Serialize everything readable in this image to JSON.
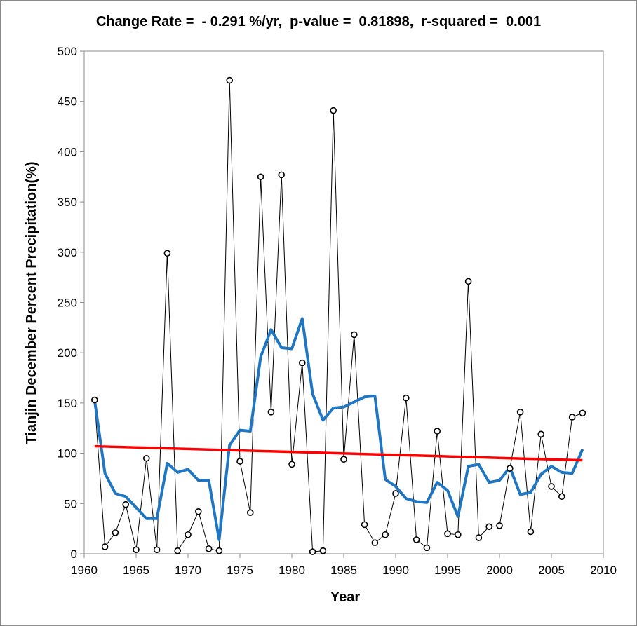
{
  "chart_data": {
    "type": "line",
    "title": "Change Rate =  - 0.291 %/yr,  p-value =  0.81898,  r-squared =  0.001",
    "xlabel": "Year",
    "ylabel": "Tianjin December Percent Precipitation(%)",
    "xlim": [
      1960,
      2010
    ],
    "ylim": [
      0,
      500
    ],
    "x_ticks": [
      "1960",
      "1965",
      "1970",
      "1975",
      "1980",
      "1985",
      "1990",
      "1995",
      "2000",
      "2005",
      "2010"
    ],
    "y_ticks": [
      "0",
      "50",
      "100",
      "150",
      "200",
      "250",
      "300",
      "350",
      "400",
      "450",
      "500"
    ],
    "grid": false,
    "legend": "none",
    "x": [
      1961,
      1962,
      1963,
      1964,
      1965,
      1966,
      1967,
      1968,
      1969,
      1970,
      1971,
      1972,
      1973,
      1974,
      1975,
      1976,
      1977,
      1978,
      1979,
      1980,
      1981,
      1982,
      1983,
      1984,
      1985,
      1986,
      1987,
      1988,
      1989,
      1990,
      1991,
      1992,
      1993,
      1994,
      1995,
      1996,
      1997,
      1998,
      1999,
      2000,
      2001,
      2002,
      2003,
      2004,
      2005,
      2006,
      2007,
      2008
    ],
    "series": [
      {
        "style": "black-line-open-circles",
        "color": "#000000",
        "values": [
          153,
          7,
          21,
          49,
          4,
          95,
          4,
          299,
          3,
          19,
          42,
          5,
          3,
          471,
          92,
          41,
          375,
          141,
          377,
          89,
          190,
          2,
          3,
          441,
          94,
          218,
          29,
          11,
          19,
          60,
          155,
          14,
          6,
          122,
          20,
          19,
          271,
          16,
          27,
          28,
          85,
          141,
          22,
          119,
          67,
          57,
          136,
          140
        ]
      },
      {
        "style": "moving-average",
        "color": "#1f77c4",
        "values": [
          153,
          80,
          60,
          57,
          46,
          35,
          35,
          90,
          81,
          84,
          73,
          73,
          14,
          108,
          123,
          122,
          196,
          223,
          205,
          204,
          234,
          159,
          133,
          145,
          146,
          151,
          156,
          157,
          74,
          67,
          55,
          52,
          51,
          71,
          63,
          37,
          87,
          89,
          71,
          73,
          86,
          59,
          61,
          79,
          87,
          81,
          80,
          104
        ]
      },
      {
        "style": "linear-trend",
        "color": "#ff0000",
        "values_at_endpoints": [
          107,
          93
        ]
      }
    ]
  }
}
